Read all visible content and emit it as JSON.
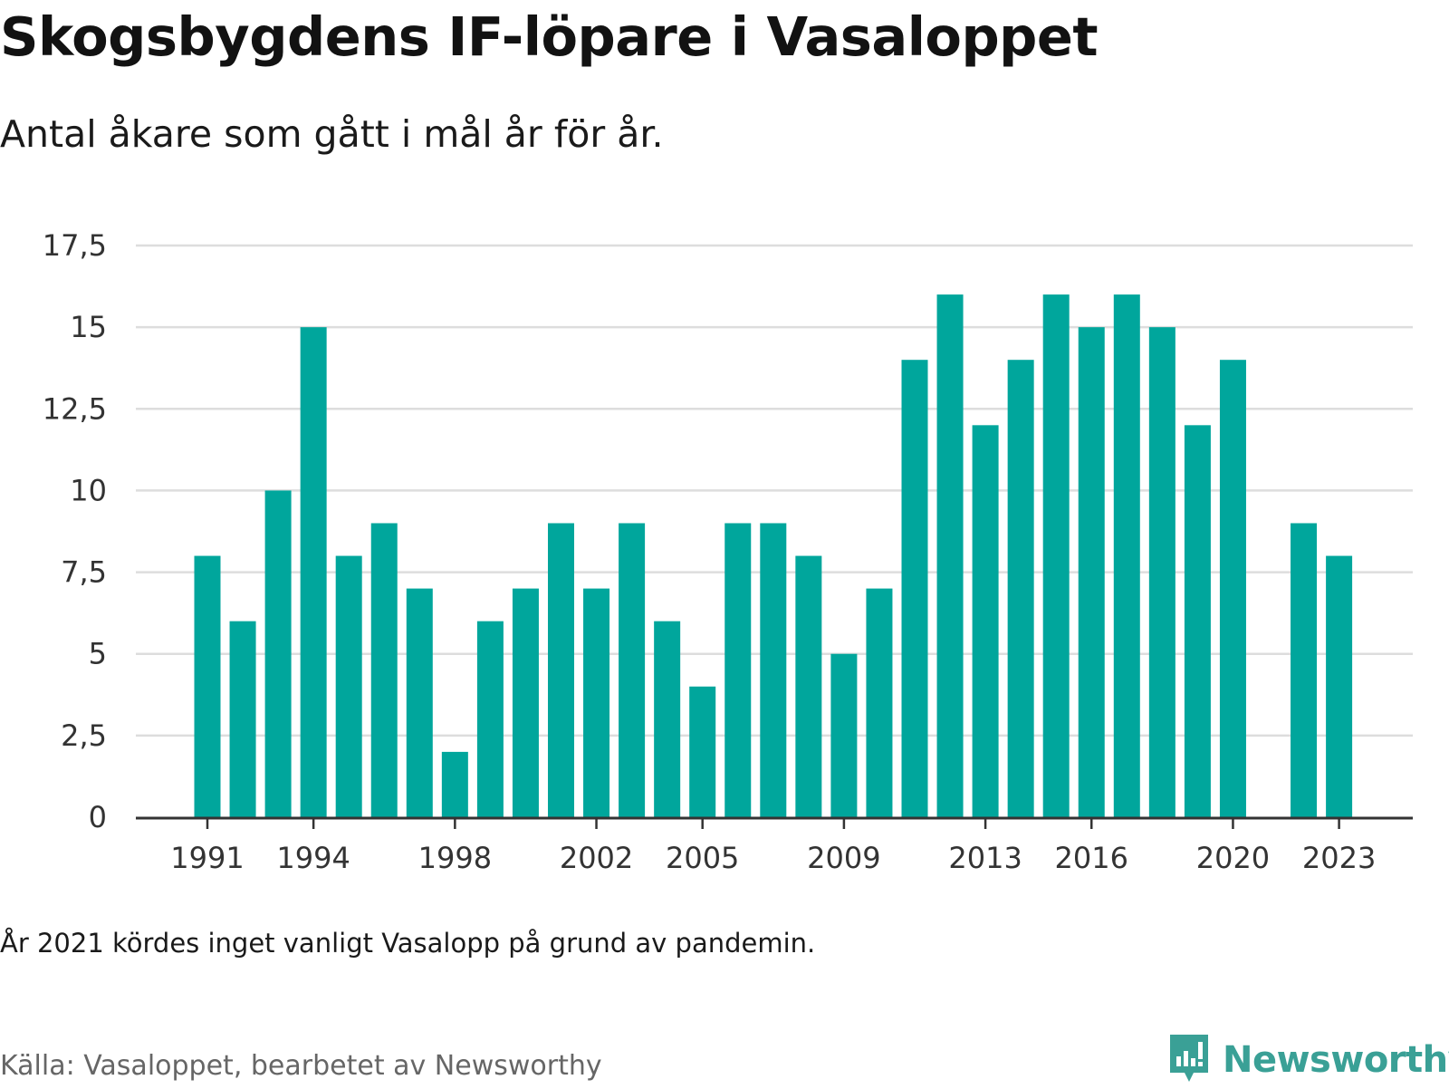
{
  "header": {
    "title": "Skogsbygdens IF-löpare i Vasaloppet",
    "subtitle": "Antal åkare som gått i mål år för år."
  },
  "footer": {
    "note": "År 2021 kördes inget vanligt Vasalopp på grund av pandemin.",
    "source": "Källa: Vasaloppet, bearbetet av Newsworthy",
    "brand": "Newsworthy",
    "brand_icon": "bar-chart-speech-bubble-icon"
  },
  "colors": {
    "bar": "#00a69c",
    "grid": "#dddddd",
    "axis": "#333333",
    "brand": "#3aa096"
  },
  "chart_data": {
    "type": "bar",
    "title": "Skogsbygdens IF-löpare i Vasaloppet",
    "subtitle": "Antal åkare som gått i mål år för år.",
    "xlabel": "",
    "ylabel": "",
    "x": [
      1991,
      1992,
      1993,
      1994,
      1995,
      1996,
      1997,
      1998,
      1999,
      2000,
      2001,
      2002,
      2003,
      2004,
      2005,
      2006,
      2007,
      2008,
      2009,
      2010,
      2011,
      2012,
      2013,
      2014,
      2015,
      2016,
      2017,
      2018,
      2019,
      2020,
      2021,
      2022,
      2023
    ],
    "values": [
      8,
      6,
      10,
      15,
      8,
      9,
      7,
      2,
      6,
      7,
      9,
      7,
      9,
      6,
      4,
      9,
      9,
      8,
      5,
      7,
      14,
      16,
      12,
      14,
      16,
      15,
      16,
      15,
      12,
      14,
      null,
      9,
      8
    ],
    "ylim": [
      0,
      17.5
    ],
    "yticks": [
      0,
      2.5,
      5,
      7.5,
      10,
      12.5,
      15,
      17.5
    ],
    "ytick_labels": [
      "0",
      "2,5",
      "5",
      "7,5",
      "10",
      "12,5",
      "15",
      "17,5"
    ],
    "xticks": [
      1991,
      1994,
      1998,
      2002,
      2005,
      2009,
      2013,
      2016,
      2020,
      2023
    ],
    "xtick_labels": [
      "1991",
      "1994",
      "1998",
      "2002",
      "2005",
      "2009",
      "2013",
      "2016",
      "2020",
      "2023"
    ],
    "grid": true,
    "legend": "none"
  }
}
